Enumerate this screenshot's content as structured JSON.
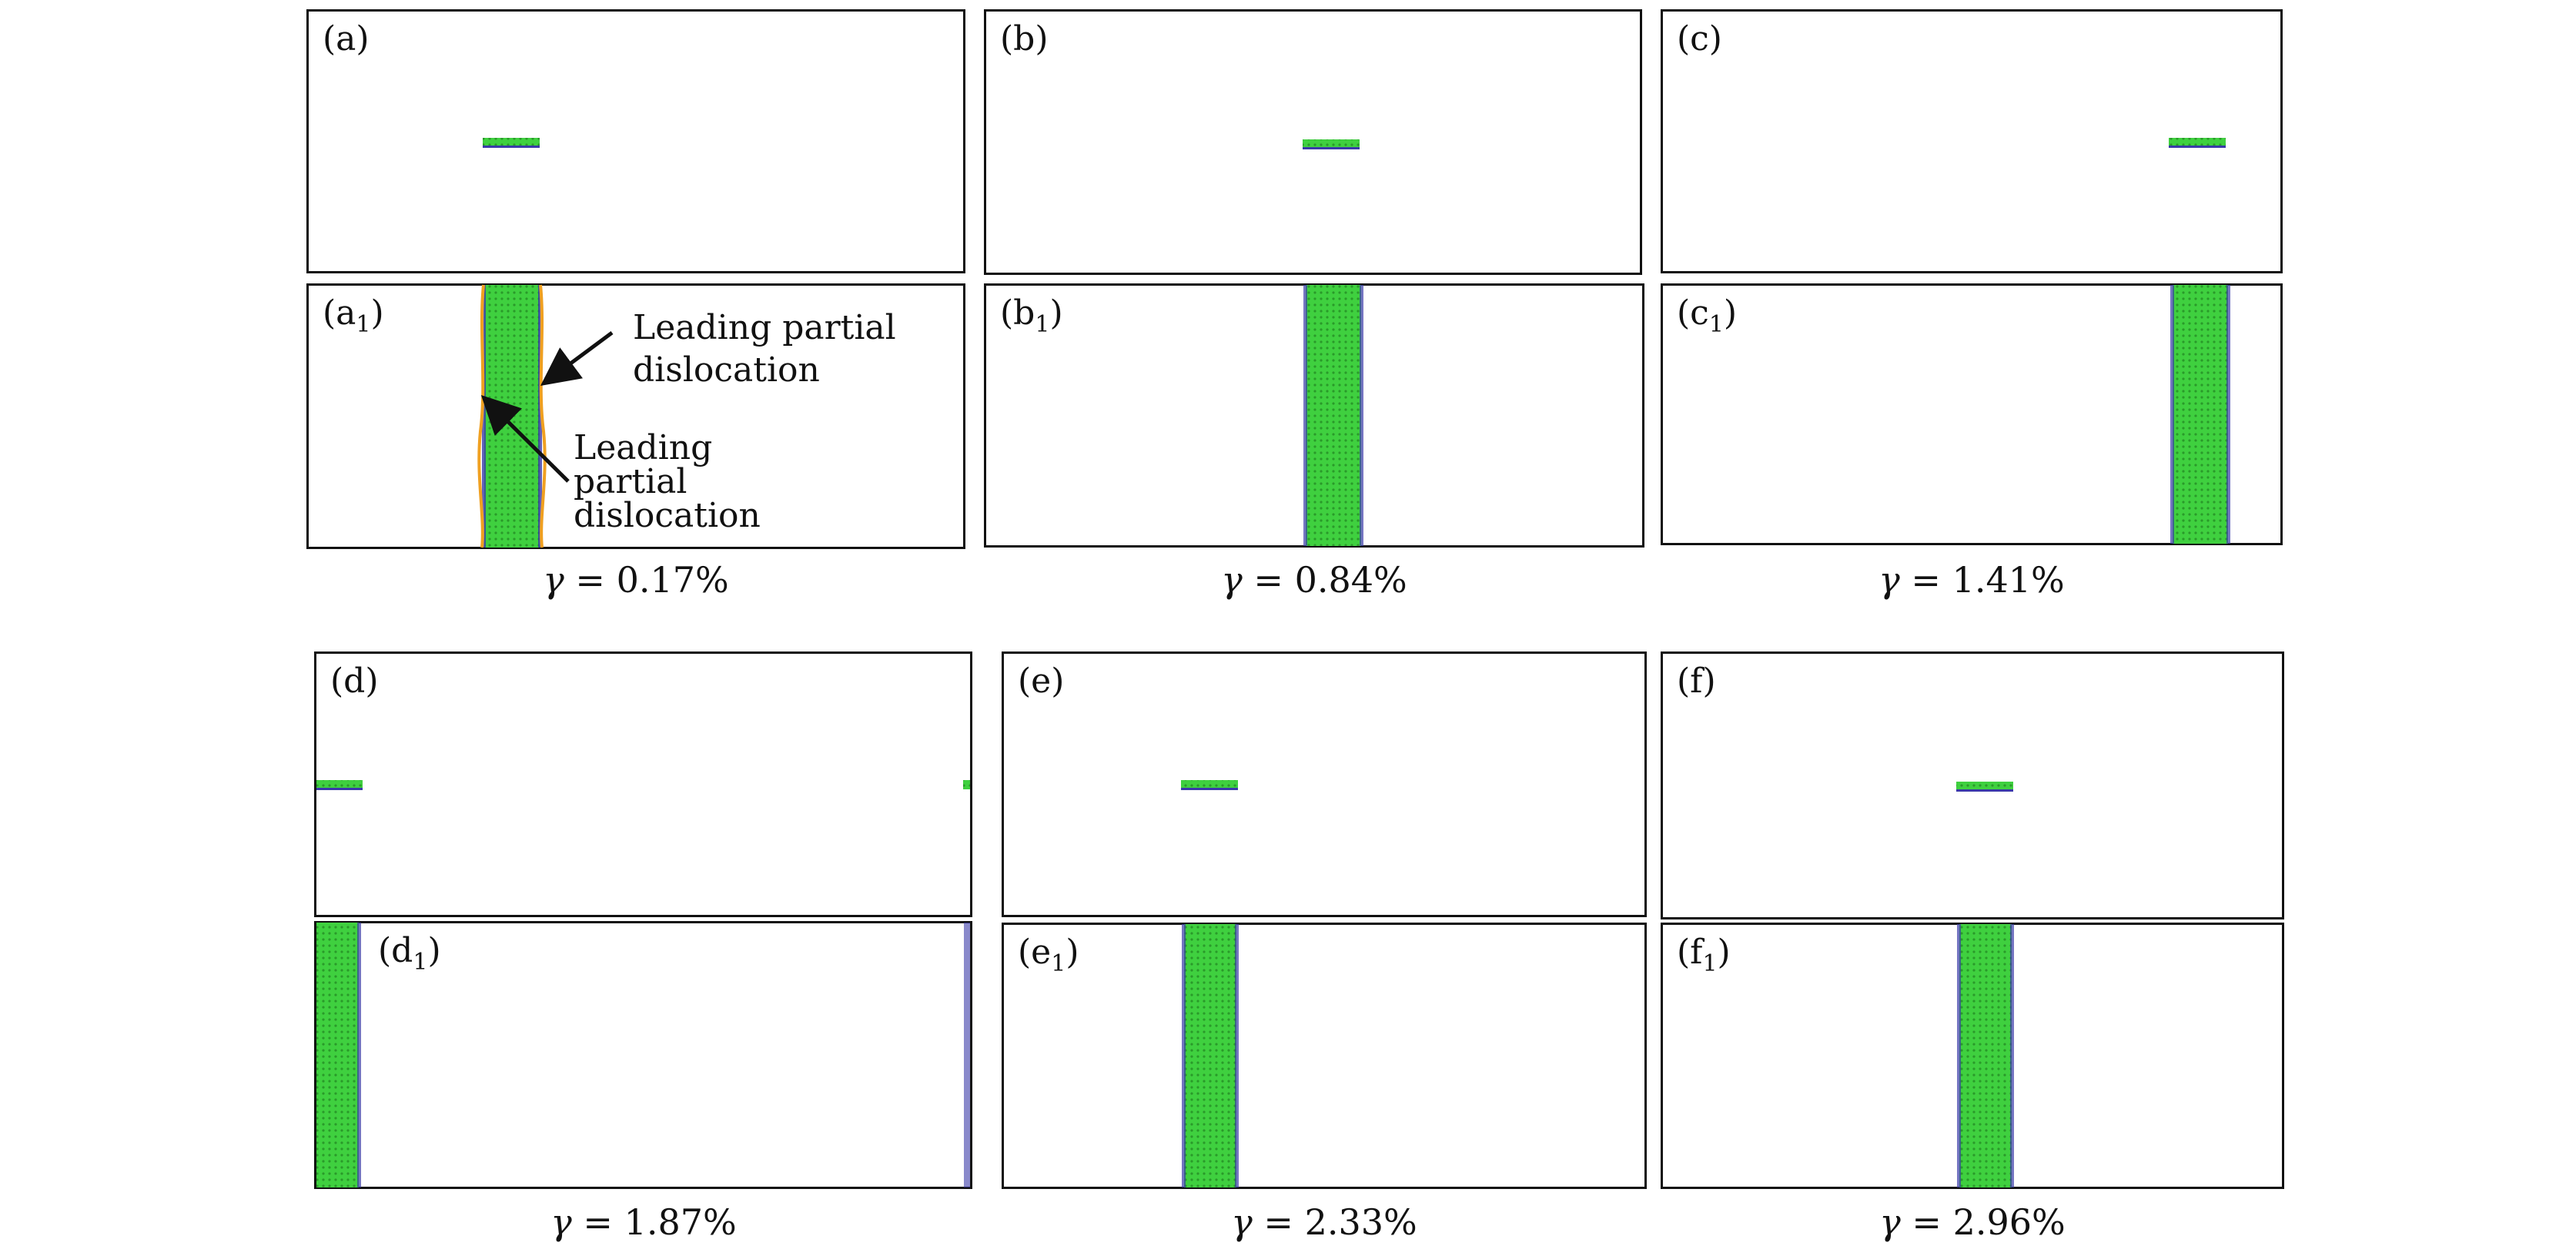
{
  "panels": {
    "a": "(a)",
    "b": "(b)",
    "c": "(c)",
    "d": "(d)",
    "e": "(e)",
    "f": "(f)",
    "a1": "(a",
    "b1": "(b",
    "c1": "(c",
    "d1": "(d",
    "e1": "(e",
    "f1": "(f",
    "sub": "1",
    "close": ")"
  },
  "captions": {
    "gamma_symbol": "γ",
    "eq": " = ",
    "c1": "0.17%",
    "c2": "0.84%",
    "c3": "1.41%",
    "c4": "1.87%",
    "c5": "2.33%",
    "c6": "2.96%"
  },
  "annotations": {
    "top_line1": "Leading partial",
    "top_line2": "dislocation",
    "bottom_line1": "Leading",
    "bottom_line2": "partial",
    "bottom_line3": "dislocation"
  },
  "colors": {
    "fault_green": "#3fd03f",
    "partial_blue": "#3a3aa8",
    "line_orange": "#f0a020",
    "frame": "#111111"
  }
}
